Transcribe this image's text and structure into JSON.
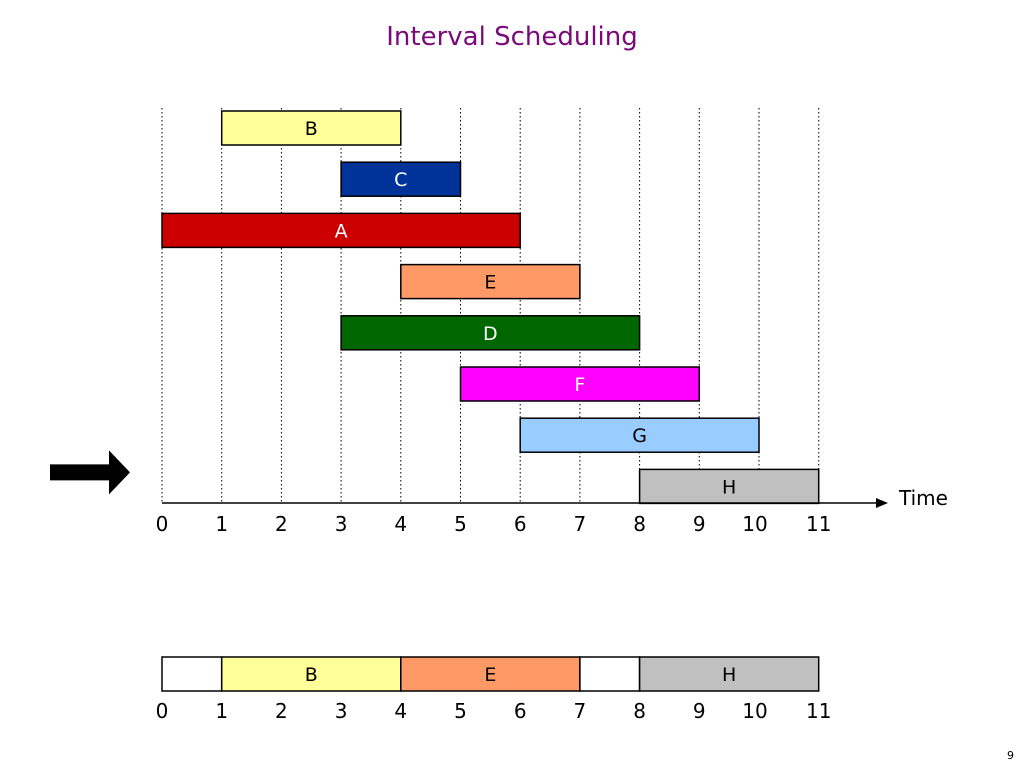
{
  "slide": {
    "title": "Interval Scheduling",
    "page_number": "9"
  },
  "axis": {
    "label": "Time",
    "ticks": [
      "0",
      "1",
      "2",
      "3",
      "4",
      "5",
      "6",
      "7",
      "8",
      "9",
      "10",
      "11"
    ]
  },
  "intervals": [
    {
      "label": "B",
      "start": 1,
      "end": 4,
      "color": "#ffff99",
      "text_color": "#000000"
    },
    {
      "label": "C",
      "start": 3,
      "end": 5,
      "color": "#003399",
      "text_color": "#ffffff"
    },
    {
      "label": "A",
      "start": 0,
      "end": 6,
      "color": "#cc0000",
      "text_color": "#ffffff"
    },
    {
      "label": "E",
      "start": 4,
      "end": 7,
      "color": "#ff9966",
      "text_color": "#000000"
    },
    {
      "label": "D",
      "start": 3,
      "end": 8,
      "color": "#006600",
      "text_color": "#ffffff"
    },
    {
      "label": "F",
      "start": 5,
      "end": 9,
      "color": "#ff00ff",
      "text_color": "#ffffff"
    },
    {
      "label": "G",
      "start": 6,
      "end": 10,
      "color": "#99ccff",
      "text_color": "#000000"
    },
    {
      "label": "H",
      "start": 8,
      "end": 11,
      "color": "#c0c0c0",
      "text_color": "#000000"
    }
  ],
  "current_pointer": {
    "icon": "arrow-right-icon",
    "row": 7
  },
  "schedule": {
    "segments": [
      {
        "label": "",
        "start": 0,
        "end": 1,
        "color": "#ffffff",
        "text_color": "#000000"
      },
      {
        "label": "B",
        "start": 1,
        "end": 4,
        "color": "#ffff99",
        "text_color": "#000000"
      },
      {
        "label": "E",
        "start": 4,
        "end": 7,
        "color": "#ff9966",
        "text_color": "#000000"
      },
      {
        "label": "",
        "start": 7,
        "end": 8,
        "color": "#ffffff",
        "text_color": "#000000"
      },
      {
        "label": "H",
        "start": 8,
        "end": 11,
        "color": "#c0c0c0",
        "text_color": "#000000"
      }
    ],
    "ticks": [
      "0",
      "1",
      "2",
      "3",
      "4",
      "5",
      "6",
      "7",
      "8",
      "9",
      "10",
      "11"
    ]
  }
}
